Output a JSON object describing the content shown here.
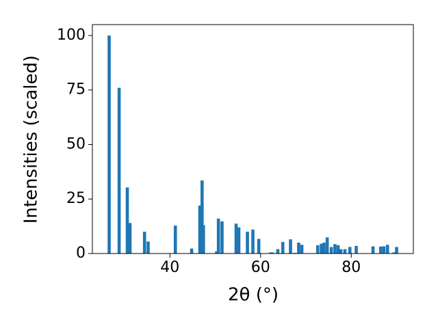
{
  "chart_data": {
    "type": "bar",
    "xlabel": "2θ (°)",
    "ylabel": "Intensities (scaled)",
    "x": [
      26.6,
      28.8,
      30.6,
      31.2,
      34.4,
      35.2,
      41.2,
      44.8,
      46.6,
      47.1,
      47.4,
      50.3,
      50.7,
      51.5,
      54.6,
      55.2,
      57.1,
      58.3,
      59.6,
      62.2,
      62.6,
      63.8,
      64.9,
      66.6,
      67.6,
      68.4,
      69.1,
      72.6,
      73.4,
      74.0,
      74.7,
      75.6,
      76.4,
      77.1,
      77.7,
      78.6,
      79.7,
      81.1,
      84.8,
      86.5,
      87.2,
      88.0,
      89.4,
      90.0
    ],
    "values": [
      100,
      76,
      30.3,
      14,
      10,
      5.5,
      12.8,
      2.3,
      22,
      33.5,
      13,
      1,
      16,
      14.7,
      13.7,
      12,
      10,
      11,
      6.7,
      0.5,
      0.5,
      2,
      5.3,
      6.5,
      0.3,
      5,
      4,
      3.8,
      4.5,
      5,
      7.4,
      3,
      4.3,
      3.8,
      2,
      2,
      3,
      3.5,
      3.3,
      3.2,
      3.3,
      4,
      0.5,
      3
    ],
    "color": "#1f77b4",
    "xlim": [
      22.9,
      93.7
    ],
    "xticks": [
      40,
      60,
      80
    ],
    "ylim": [
      0,
      105
    ],
    "yticks": [
      0,
      25,
      50,
      75,
      100
    ],
    "grid": false
  }
}
